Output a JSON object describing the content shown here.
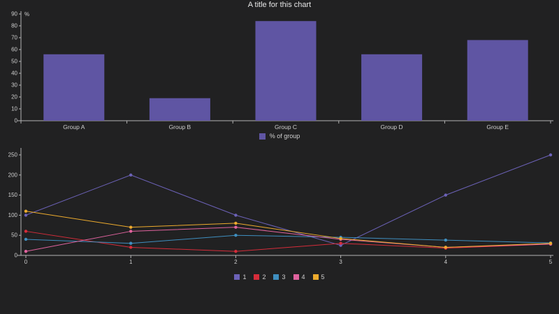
{
  "page": {
    "background": "#212122",
    "text_color": "#cfcfcf",
    "axis_color": "#b4b4b4"
  },
  "chart_data": [
    {
      "type": "bar",
      "title": "A title for this chart",
      "categories": [
        "Group A",
        "Group B",
        "Group C",
        "Group D",
        "Group E"
      ],
      "values": [
        56,
        19,
        84,
        56,
        68
      ],
      "xlabel": "",
      "ylabel": "%",
      "ylim": [
        0,
        90
      ],
      "yticks": [
        0,
        10,
        20,
        30,
        40,
        50,
        60,
        70,
        80,
        90
      ],
      "grid": false,
      "bar_color": "#5f55a3",
      "legend": {
        "label": "% of group",
        "color": "#5f55a3",
        "position": "bottom"
      }
    },
    {
      "type": "line",
      "title": "",
      "xlabel": "",
      "ylabel": "",
      "x": [
        0,
        1,
        2,
        3,
        4,
        5
      ],
      "xticks": [
        0,
        1,
        2,
        3,
        4,
        5
      ],
      "ylim": [
        0,
        260
      ],
      "yticks": [
        0,
        50,
        100,
        150,
        200,
        250
      ],
      "grid": false,
      "legend_position": "bottom",
      "series": [
        {
          "name": "1",
          "color": "#6c62b8",
          "values": [
            100,
            200,
            100,
            25,
            150,
            250
          ]
        },
        {
          "name": "2",
          "color": "#d62c3a",
          "values": [
            60,
            20,
            10,
            30,
            18,
            28
          ]
        },
        {
          "name": "3",
          "color": "#3f8fc0",
          "values": [
            40,
            30,
            50,
            45,
            38,
            31
          ]
        },
        {
          "name": "4",
          "color": "#e0639e",
          "values": [
            10,
            60,
            70,
            40,
            20,
            28
          ]
        },
        {
          "name": "5",
          "color": "#edab2d",
          "values": [
            110,
            70,
            80,
            42,
            20,
            30
          ]
        }
      ]
    }
  ]
}
